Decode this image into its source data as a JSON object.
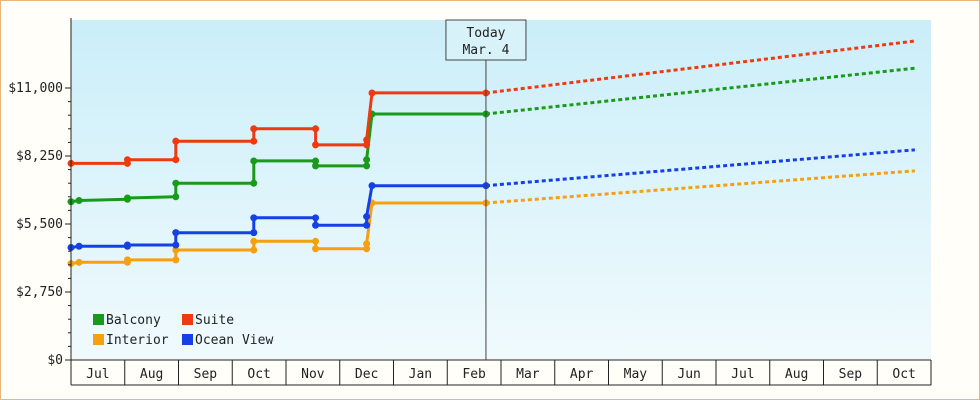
{
  "chart_data": {
    "type": "line",
    "title": "",
    "xlabel": "",
    "ylabel": "",
    "ylim": [
      0,
      13750
    ],
    "yticks": [
      {
        "value": 0,
        "label": "$0"
      },
      {
        "value": 2750,
        "label": "$2,750"
      },
      {
        "value": 5500,
        "label": "$5,500"
      },
      {
        "value": 8250,
        "label": "$8,250"
      },
      {
        "value": 11000,
        "label": "$11,000"
      }
    ],
    "months": [
      "Jul",
      "Aug",
      "Sep",
      "Oct",
      "Nov",
      "Dec",
      "Jan",
      "Feb",
      "Mar",
      "Apr",
      "May",
      "Jun",
      "Jul",
      "Aug",
      "Sep",
      "Oct"
    ],
    "today": {
      "line1": "Today",
      "line2": "Mar. 4",
      "x": 7.72
    },
    "grid": false,
    "background": {
      "top": "#cbeef9",
      "bottom": "#f0fafd"
    },
    "legend": {
      "placement": "bottom-left"
    },
    "series": [
      {
        "name": "Balcony",
        "color": "#1a9a1a",
        "points": [
          [
            0,
            6400
          ],
          [
            0.15,
            6450
          ],
          [
            1.05,
            6500
          ],
          [
            1.05,
            6550
          ],
          [
            1.95,
            6600
          ],
          [
            1.95,
            7150
          ],
          [
            3.4,
            7150
          ],
          [
            3.4,
            8050
          ],
          [
            4.55,
            8050
          ],
          [
            4.55,
            7850
          ],
          [
            5.5,
            7850
          ],
          [
            5.5,
            8100
          ],
          [
            5.6,
            9950
          ],
          [
            7.72,
            9950
          ]
        ],
        "projection": [
          [
            7.72,
            9950
          ],
          [
            15.7,
            11800
          ]
        ]
      },
      {
        "name": "Suite",
        "color": "#ee3a10",
        "points": [
          [
            0,
            7950
          ],
          [
            1.05,
            7950
          ],
          [
            1.05,
            8100
          ],
          [
            1.95,
            8100
          ],
          [
            1.95,
            8850
          ],
          [
            3.4,
            8850
          ],
          [
            3.4,
            9350
          ],
          [
            4.55,
            9350
          ],
          [
            4.55,
            8700
          ],
          [
            5.5,
            8700
          ],
          [
            5.5,
            8900
          ],
          [
            5.6,
            10800
          ],
          [
            7.72,
            10800
          ]
        ],
        "projection": [
          [
            7.72,
            10800
          ],
          [
            15.7,
            12900
          ]
        ]
      },
      {
        "name": "Interior",
        "color": "#f5a010",
        "points": [
          [
            0,
            3900
          ],
          [
            0.15,
            3950
          ],
          [
            1.05,
            3950
          ],
          [
            1.05,
            4050
          ],
          [
            1.95,
            4050
          ],
          [
            1.95,
            4450
          ],
          [
            3.4,
            4450
          ],
          [
            3.4,
            4800
          ],
          [
            4.55,
            4800
          ],
          [
            4.55,
            4500
          ],
          [
            5.5,
            4500
          ],
          [
            5.5,
            4700
          ],
          [
            5.6,
            6350
          ],
          [
            7.72,
            6350
          ]
        ],
        "projection": [
          [
            7.72,
            6350
          ],
          [
            15.7,
            7650
          ]
        ]
      },
      {
        "name": "Ocean View",
        "color": "#1440e6",
        "points": [
          [
            0,
            4550
          ],
          [
            0.15,
            4600
          ],
          [
            1.05,
            4600
          ],
          [
            1.05,
            4650
          ],
          [
            1.95,
            4650
          ],
          [
            1.95,
            5150
          ],
          [
            3.4,
            5150
          ],
          [
            3.4,
            5750
          ],
          [
            4.55,
            5750
          ],
          [
            4.55,
            5450
          ],
          [
            5.5,
            5450
          ],
          [
            5.5,
            5800
          ],
          [
            5.6,
            7050
          ],
          [
            7.72,
            7050
          ]
        ],
        "projection": [
          [
            7.72,
            7050
          ],
          [
            15.7,
            8500
          ]
        ]
      }
    ]
  }
}
